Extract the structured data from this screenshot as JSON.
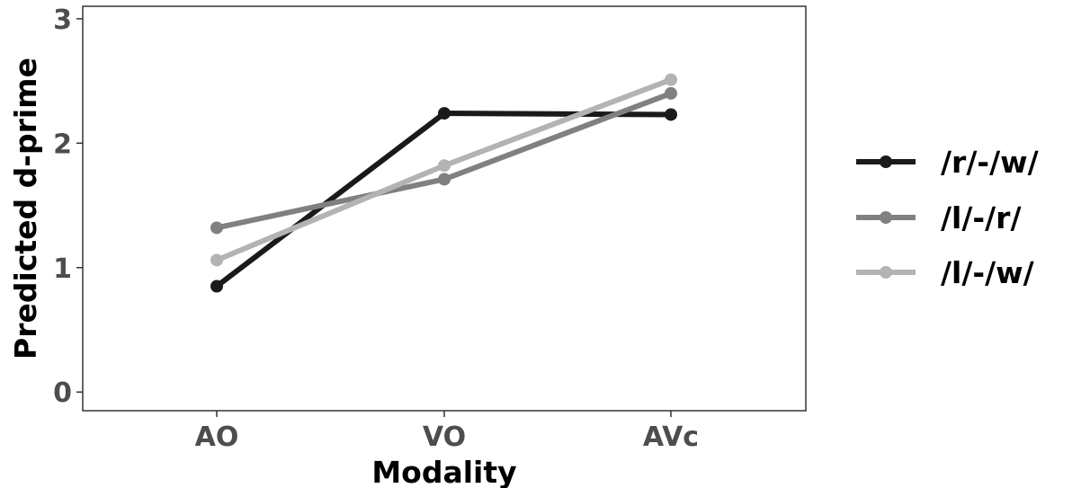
{
  "chart_data": {
    "type": "line",
    "xlabel": "Modality",
    "ylabel": "Predicted d-prime",
    "categories": [
      "AO",
      "VO",
      "AVc"
    ],
    "ylim": [
      -0.15,
      3.1
    ],
    "yticks": [
      0,
      1,
      2,
      3
    ],
    "grid": false,
    "legend_position": "right",
    "series": [
      {
        "name": "/r/-/w/",
        "color": "#1a1a1a",
        "values": [
          0.85,
          2.24,
          2.23
        ]
      },
      {
        "name": "/l/-/r/",
        "color": "#808080",
        "values": [
          1.32,
          1.71,
          2.4
        ]
      },
      {
        "name": "/l/-/w/",
        "color": "#b3b3b3",
        "values": [
          1.06,
          1.82,
          2.51
        ]
      }
    ]
  }
}
